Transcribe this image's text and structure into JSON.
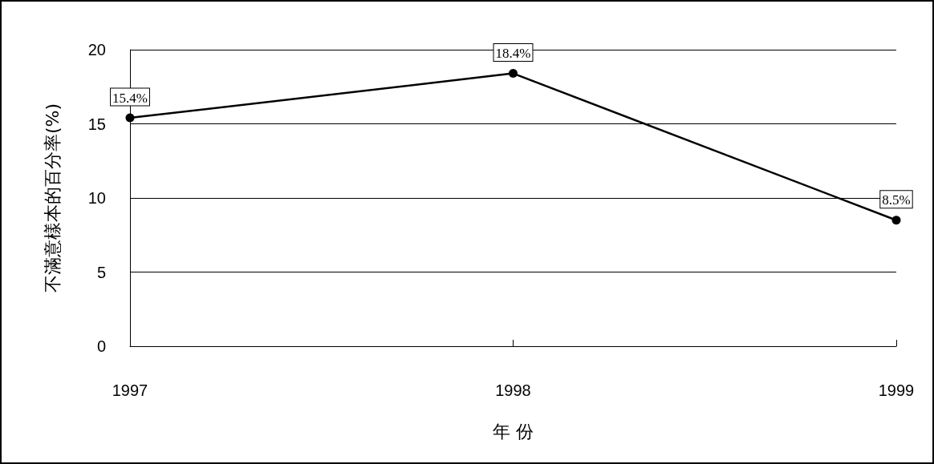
{
  "chart_data": {
    "type": "line",
    "xlabel": "年 份",
    "ylabel": "不滿意樣本的百分率(%)",
    "categories": [
      "1997",
      "1998",
      "1999"
    ],
    "series": [
      {
        "color": "#000000",
        "values": [
          15.4,
          18.4,
          8.5
        ],
        "value_labels": [
          "15.4%",
          "18.4%",
          "8.5%"
        ]
      }
    ],
    "ylim": [
      0,
      20
    ],
    "yticks": [
      0,
      5,
      10,
      15,
      20
    ],
    "grid": "y",
    "marker": "circle",
    "line_style": "solid"
  }
}
